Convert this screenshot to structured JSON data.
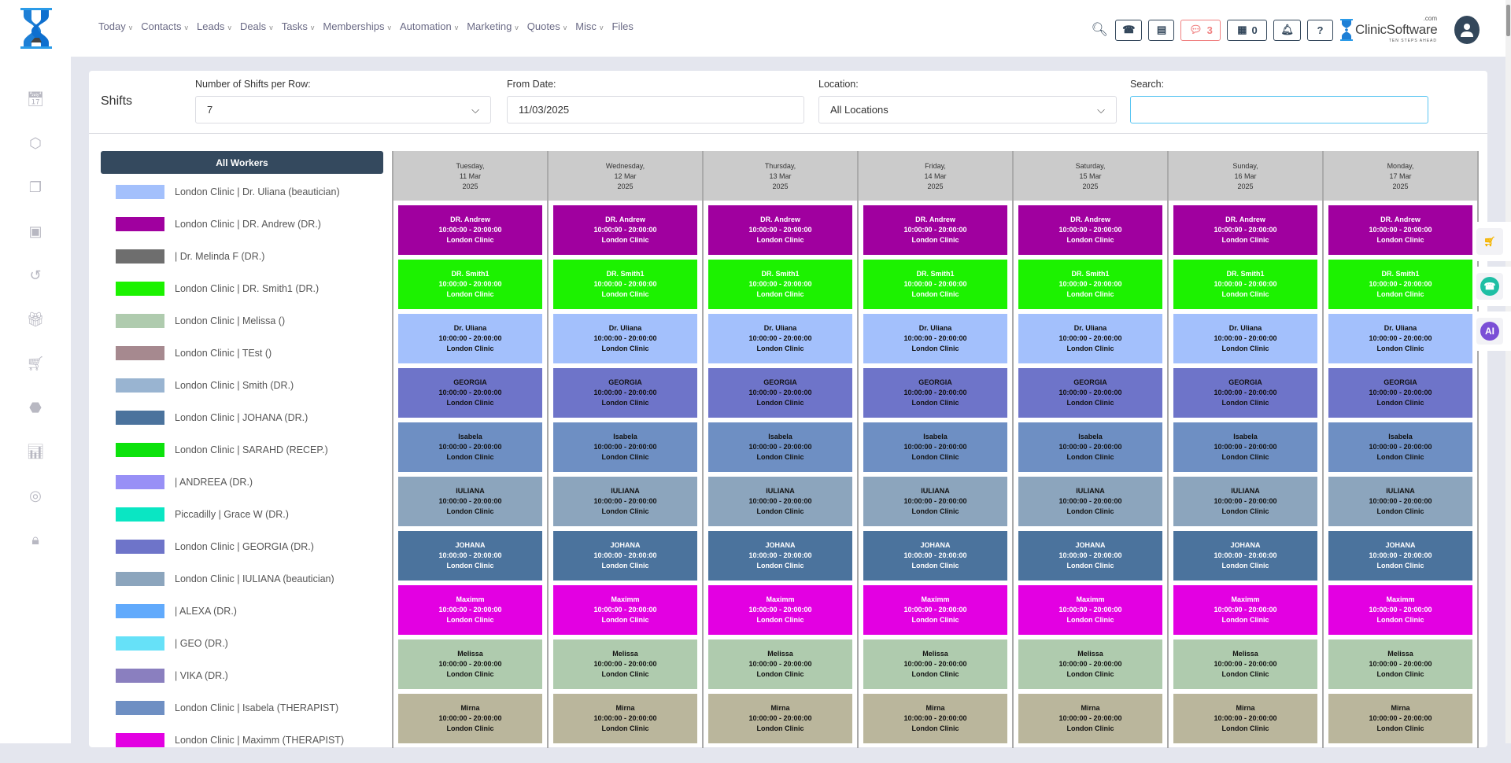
{
  "nav": {
    "items": [
      {
        "label": "Today",
        "chevron": true
      },
      {
        "label": "Contacts",
        "chevron": true
      },
      {
        "label": "Leads",
        "chevron": true
      },
      {
        "label": "Deals",
        "chevron": true
      },
      {
        "label": "Tasks",
        "chevron": true
      },
      {
        "label": "Memberships",
        "chevron": true
      },
      {
        "label": "Automation",
        "chevron": true
      },
      {
        "label": "Marketing",
        "chevron": true
      },
      {
        "label": "Quotes",
        "chevron": true
      },
      {
        "label": "Misc",
        "chevron": true
      },
      {
        "label": "Files",
        "chevron": false
      }
    ],
    "chevron_glyph": "v"
  },
  "toolbar": {
    "chat_count": "3",
    "store_count": "0",
    "brand_name": "ClinicSoftware",
    "brand_suffix": ".com",
    "brand_tagline": "TEN STEPS AHEAD",
    "chat_color": "#f08080"
  },
  "sidebar_icons": [
    "calendar-icon",
    "box-icon",
    "copy-icon",
    "gift-box-icon",
    "history-icon",
    "gift-icon",
    "cart-icon",
    "tag-icon",
    "report-icon",
    "user-circle-icon",
    "lock-icon"
  ],
  "page": {
    "title": "Shifts",
    "filters": {
      "shifts_per_row": {
        "label": "Number of Shifts per Row:",
        "value": "7"
      },
      "from_date": {
        "label": "From Date:",
        "value": "11/03/2025"
      },
      "location": {
        "label": "Location:",
        "value": "All Locations"
      },
      "search": {
        "label": "Search:",
        "value": ""
      }
    },
    "all_workers_label": "All Workers"
  },
  "legend": [
    {
      "label": "London Clinic | Dr. Uliana (beautician)",
      "color": "#a3c0fc"
    },
    {
      "label": "London Clinic | DR. Andrew (DR.)",
      "color": "#a0009f"
    },
    {
      "label": "| Dr. Melinda F (DR.)",
      "color": "#6e6e6e"
    },
    {
      "label": "London Clinic | DR. Smith1 (DR.)",
      "color": "#1cf200"
    },
    {
      "label": "London Clinic | Melissa ()",
      "color": "#afcbae"
    },
    {
      "label": "London Clinic | TEst ()",
      "color": "#a6898f"
    },
    {
      "label": "London Clinic | Smith (DR.)",
      "color": "#99b4d1"
    },
    {
      "label": "London Clinic | JOHANA (DR.)",
      "color": "#4b739d"
    },
    {
      "label": "London Clinic | SARAHD (RECEP.)",
      "color": "#0ce20c"
    },
    {
      "label": "| ANDREEA (DR.)",
      "color": "#9890f6"
    },
    {
      "label": "Piccadilly | Grace W (DR.)",
      "color": "#0ae6c3"
    },
    {
      "label": "London Clinic | GEORGIA (DR.)",
      "color": "#6e74c9"
    },
    {
      "label": "London Clinic | IULIANA (beautician)",
      "color": "#8ca5bd"
    },
    {
      "label": "| ALEXA (DR.)",
      "color": "#61aafc"
    },
    {
      "label": "| GEO (DR.)",
      "color": "#66e1f8"
    },
    {
      "label": "| VIKA (DR.)",
      "color": "#8a7fbf"
    },
    {
      "label": "London Clinic | Isabela (THERAPIST)",
      "color": "#6e8fc3"
    },
    {
      "label": "London Clinic | Maximm (THERAPIST)",
      "color": "#e300e2"
    }
  ],
  "days": [
    {
      "weekday": "Tuesday,",
      "date": "11 Mar",
      "year": "2025"
    },
    {
      "weekday": "Wednesday,",
      "date": "12 Mar",
      "year": "2025"
    },
    {
      "weekday": "Thursday,",
      "date": "13 Mar",
      "year": "2025"
    },
    {
      "weekday": "Friday,",
      "date": "14 Mar",
      "year": "2025"
    },
    {
      "weekday": "Saturday,",
      "date": "15 Mar",
      "year": "2025"
    },
    {
      "weekday": "Sunday,",
      "date": "16 Mar",
      "year": "2025"
    },
    {
      "weekday": "Monday,",
      "date": "17 Mar",
      "year": "2025"
    }
  ],
  "shifts": [
    {
      "name": "DR. Andrew",
      "time": "10:00:00 - 20:00:00",
      "location": "London Clinic",
      "color": "#a0009f",
      "text_color": "#ffffff"
    },
    {
      "name": "DR. Smith1",
      "time": "10:00:00 - 20:00:00",
      "location": "London Clinic",
      "color": "#1cf200",
      "text_color": "#ffffff"
    },
    {
      "name": "Dr. Uliana",
      "time": "10:00:00 - 20:00:00",
      "location": "London Clinic",
      "color": "#a3c0fc",
      "text_color": "#111111"
    },
    {
      "name": "GEORGIA",
      "time": "10:00:00 - 20:00:00",
      "location": "London Clinic",
      "color": "#6e74c9",
      "text_color": "#111111"
    },
    {
      "name": "Isabela",
      "time": "10:00:00 - 20:00:00",
      "location": "London Clinic",
      "color": "#6e8fc3",
      "text_color": "#111111"
    },
    {
      "name": "IULIANA",
      "time": "10:00:00 - 20:00:00",
      "location": "London Clinic",
      "color": "#8ca5bd",
      "text_color": "#111111"
    },
    {
      "name": "JOHANA",
      "time": "10:00:00 - 20:00:00",
      "location": "London Clinic",
      "color": "#4b739d",
      "text_color": "#ffffff"
    },
    {
      "name": "Maximm",
      "time": "10:00:00 - 20:00:00",
      "location": "London Clinic",
      "color": "#e300e2",
      "text_color": "#ffffff"
    },
    {
      "name": "Melissa",
      "time": "10:00:00 - 20:00:00",
      "location": "London Clinic",
      "color": "#afcbae",
      "text_color": "#111111"
    },
    {
      "name": "Mirna",
      "time": "10:00:00 - 20:00:00",
      "location": "London Clinic",
      "color": "#bab69c",
      "text_color": "#111111"
    }
  ],
  "floating_icons": [
    "cart-icon",
    "whatsapp-icon",
    "ai-assistant-icon"
  ]
}
